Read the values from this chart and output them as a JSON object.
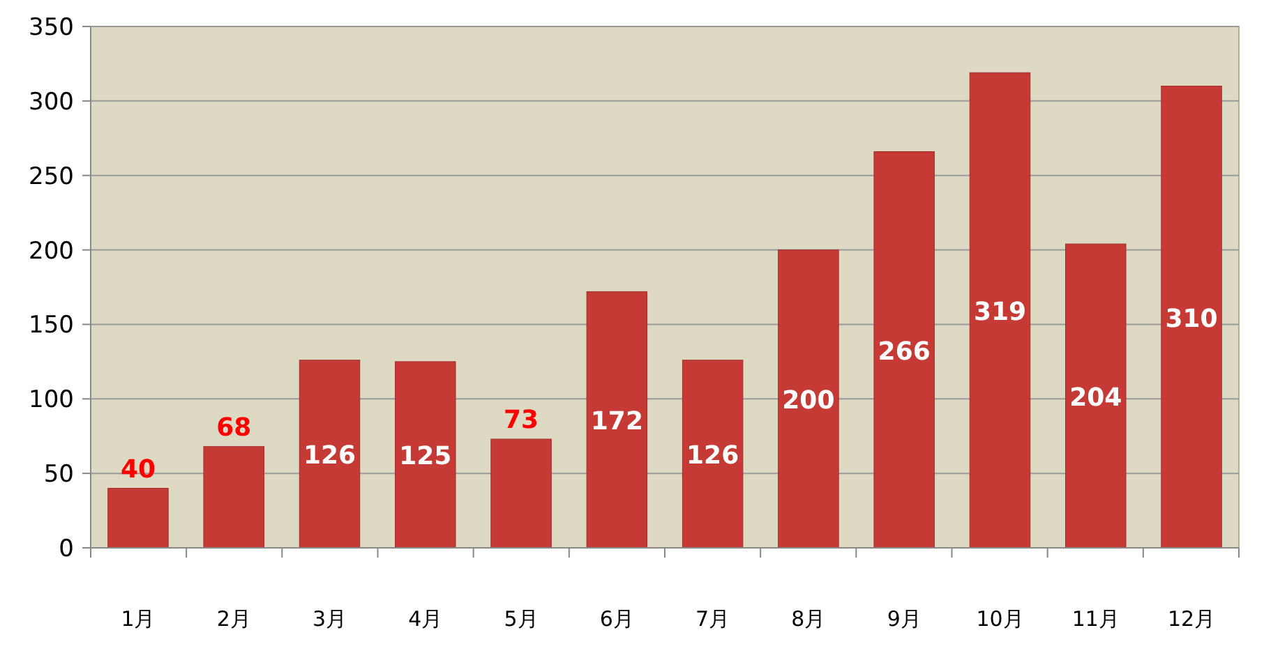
{
  "chart_data": {
    "type": "bar",
    "categories": [
      "1月",
      "2月",
      "3月",
      "4月",
      "5月",
      "6月",
      "7月",
      "8月",
      "9月",
      "10月",
      "11月",
      "12月"
    ],
    "values": [
      40,
      68,
      126,
      125,
      73,
      172,
      126,
      200,
      266,
      319,
      204,
      310
    ],
    "color": "#c63a36",
    "ylim": [
      0,
      350
    ],
    "yticks": [
      0,
      50,
      100,
      150,
      200,
      250,
      300,
      350
    ],
    "grid": "y",
    "data_labels": true
  }
}
